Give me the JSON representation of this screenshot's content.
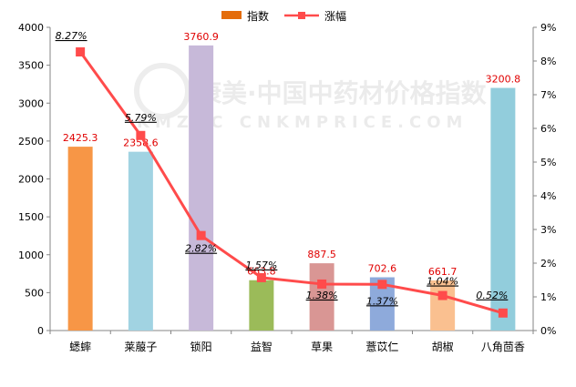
{
  "chart_data": {
    "type": "bar+line",
    "categories": [
      "蟋蟀",
      "莱菔子",
      "锁阳",
      "益智",
      "草果",
      "薏苡仁",
      "胡椒",
      "八角茴香"
    ],
    "series": [
      {
        "name": "指数",
        "type": "bar",
        "axis": "left",
        "values": [
          2425.3,
          2358.6,
          3760.9,
          663.8,
          887.5,
          702.6,
          661.7,
          3200.8
        ],
        "labels": [
          "2425.3",
          "2358.6",
          "3760.9",
          "663.8",
          "887.5",
          "702.6",
          "661.7",
          "3200.8"
        ],
        "colors": [
          "#f79646",
          "#a1d3e2",
          "#c7b9d9",
          "#9bbb59",
          "#d99694",
          "#8eaadb",
          "#fac090",
          "#92cddc"
        ]
      },
      {
        "name": "涨幅",
        "type": "line",
        "axis": "right",
        "values": [
          8.27,
          5.79,
          2.82,
          1.57,
          1.38,
          1.37,
          1.04,
          0.52
        ],
        "labels": [
          "8.27%",
          "5.79%",
          "2.82%",
          "1.57%",
          "1.38%",
          "1.37%",
          "1.04%",
          "0.52%"
        ],
        "color": "#ff4b4b"
      }
    ],
    "y_left": {
      "min": 0,
      "max": 4000,
      "ticks": [
        "0",
        "500",
        "1000",
        "1500",
        "2000",
        "2500",
        "3000",
        "3500",
        "4000"
      ]
    },
    "y_right": {
      "min": 0,
      "max": 9,
      "ticks": [
        "0%",
        "1%",
        "2%",
        "3%",
        "4%",
        "5%",
        "6%",
        "7%",
        "8%",
        "9%"
      ]
    },
    "legend": {
      "position": "top",
      "items": [
        "指数",
        "涨幅"
      ]
    },
    "watermark": "康美·中国中药材价格指数 KMZYC CNKMPRICE.COM",
    "grid": false
  }
}
